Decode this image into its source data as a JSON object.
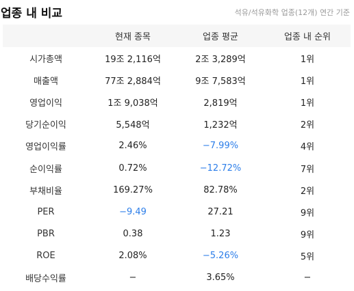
{
  "header": {
    "title": "업종 내 비교",
    "subtitle": "석유/석유화학 업종(12개) 연간 기준"
  },
  "table": {
    "columns": [
      "",
      "현재 종목",
      "업종 평균",
      "업종 내 순위"
    ],
    "rows": [
      {
        "metric": "시가총액",
        "current": "19조 2,116억",
        "average": "2조 3,289억",
        "rank": "1위",
        "current_neg": false,
        "average_neg": false
      },
      {
        "metric": "매출액",
        "current": "77조 2,884억",
        "average": "9조 7,583억",
        "rank": "1위",
        "current_neg": false,
        "average_neg": false
      },
      {
        "metric": "영업이익",
        "current": "1조 9,038억",
        "average": "2,819억",
        "rank": "1위",
        "current_neg": false,
        "average_neg": false
      },
      {
        "metric": "당기순이익",
        "current": "5,548억",
        "average": "1,232억",
        "rank": "2위",
        "current_neg": false,
        "average_neg": false
      },
      {
        "metric": "영업이익률",
        "current": "2.46%",
        "average": "−7.99%",
        "rank": "4위",
        "current_neg": false,
        "average_neg": true
      },
      {
        "metric": "순이익률",
        "current": "0.72%",
        "average": "−12.72%",
        "rank": "7위",
        "current_neg": false,
        "average_neg": true
      },
      {
        "metric": "부채비율",
        "current": "169.27%",
        "average": "82.78%",
        "rank": "2위",
        "current_neg": false,
        "average_neg": false
      },
      {
        "metric": "PER",
        "current": "−9.49",
        "average": "27.21",
        "rank": "9위",
        "current_neg": true,
        "average_neg": false
      },
      {
        "metric": "PBR",
        "current": "0.38",
        "average": "1.23",
        "rank": "9위",
        "current_neg": false,
        "average_neg": false
      },
      {
        "metric": "ROE",
        "current": "2.08%",
        "average": "−5.26%",
        "rank": "5위",
        "current_neg": false,
        "average_neg": true
      },
      {
        "metric": "배당수익률",
        "current": "−",
        "average": "3.65%",
        "rank": "−",
        "current_neg": false,
        "average_neg": false
      }
    ]
  },
  "colors": {
    "negative": "#2b7de9",
    "header_bg": "#f6f6f6",
    "subtitle": "#999999"
  }
}
